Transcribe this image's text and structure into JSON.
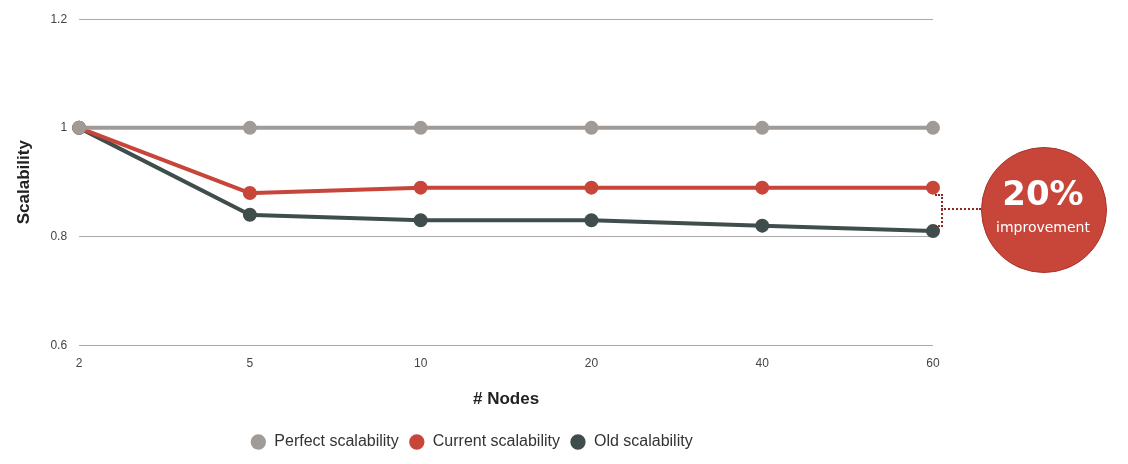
{
  "chart_data": {
    "type": "line",
    "xlabel": "# Nodes",
    "ylabel": "Scalability",
    "categories": [
      "2",
      "5",
      "10",
      "20",
      "40",
      "60"
    ],
    "series": [
      {
        "name": "Perfect scalability",
        "color": "#a19b97",
        "values": [
          1,
          1,
          1,
          1,
          1,
          1
        ]
      },
      {
        "name": "Current scalability",
        "color": "#c8453a",
        "values": [
          1,
          0.88,
          0.89,
          0.89,
          0.89,
          0.89
        ]
      },
      {
        "name": "Old scalability",
        "color": "#3f4d4c",
        "values": [
          1,
          0.84,
          0.83,
          0.83,
          0.82,
          0.81
        ]
      }
    ],
    "ylim": [
      0.6,
      1.2
    ],
    "yticks": [
      0.6,
      0.8,
      1,
      1.2
    ],
    "grid": "y",
    "legend": "bottom",
    "marker": "circle",
    "line_style": "solid",
    "annotations": [
      "20%",
      "improvement"
    ]
  }
}
